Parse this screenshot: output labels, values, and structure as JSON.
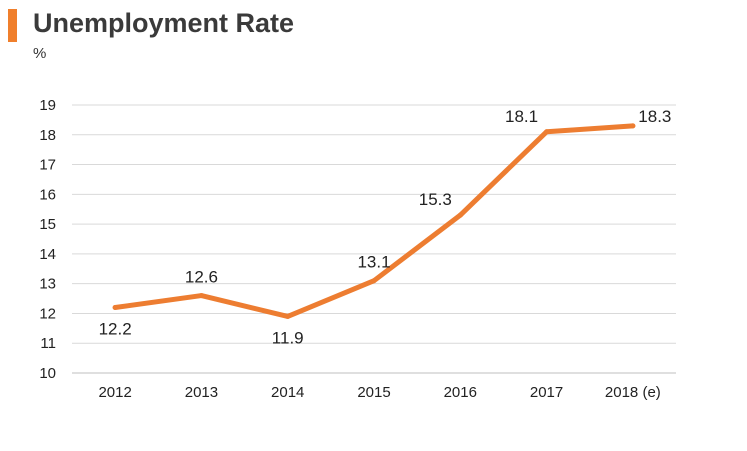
{
  "title": "Unemployment Rate",
  "unit_label": "%",
  "colors": {
    "accent": "#f07f2c",
    "line": "#ed7d31",
    "grid": "#d9d9d9",
    "text": "#222222"
  },
  "chart_data": {
    "type": "line",
    "categories": [
      "2012",
      "2013",
      "2014",
      "2015",
      "2016",
      "2017",
      "2018 (e)"
    ],
    "series": [
      {
        "values": [
          12.2,
          12.6,
          11.9,
          13.1,
          15.3,
          18.1,
          18.3
        ]
      }
    ],
    "data_labels": [
      "12.2",
      "12.6",
      "11.9",
      "13.1",
      "15.3",
      "18.1",
      "18.3"
    ],
    "ylim": [
      10,
      19
    ],
    "yticks": [
      "10",
      "11",
      "12",
      "13",
      "14",
      "15",
      "16",
      "17",
      "18",
      "19"
    ],
    "grid": true,
    "legend": "none"
  }
}
